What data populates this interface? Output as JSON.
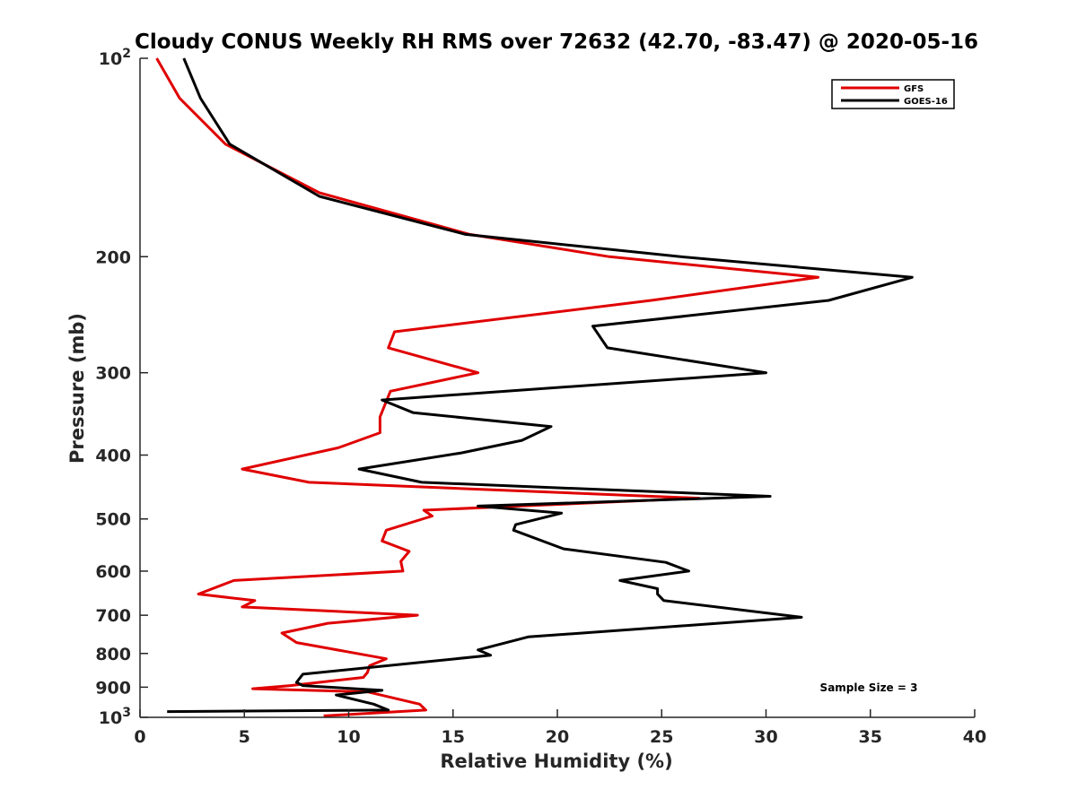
{
  "chart_data": {
    "type": "line",
    "title": "Cloudy CONUS Weekly RH RMS over 72632 (42.70, -83.47) @ 2020-05-16",
    "xlabel": "Relative Humidity (%)",
    "ylabel": "Pressure (mb)",
    "xlim": [
      0,
      40
    ],
    "ylim": [
      100,
      1000
    ],
    "y_scale": "log",
    "y_reversed": true,
    "grid": false,
    "legend_position": "top-right",
    "x_ticks": [
      {
        "value": 0,
        "label": "0"
      },
      {
        "value": 5,
        "label": "5"
      },
      {
        "value": 10,
        "label": "10"
      },
      {
        "value": 15,
        "label": "15"
      },
      {
        "value": 20,
        "label": "20"
      },
      {
        "value": 25,
        "label": "25"
      },
      {
        "value": 30,
        "label": "30"
      },
      {
        "value": 35,
        "label": "35"
      },
      {
        "value": 40,
        "label": "40"
      }
    ],
    "y_ticks": [
      {
        "value": 100,
        "label": "10",
        "sup": "2"
      },
      {
        "value": 200,
        "label": "200"
      },
      {
        "value": 300,
        "label": "300"
      },
      {
        "value": 400,
        "label": "400"
      },
      {
        "value": 500,
        "label": "500"
      },
      {
        "value": 600,
        "label": "600"
      },
      {
        "value": 700,
        "label": "700"
      },
      {
        "value": 800,
        "label": "800"
      },
      {
        "value": 900,
        "label": "900"
      },
      {
        "value": 1000,
        "label": "10",
        "sup": "3"
      }
    ],
    "annotation": "Sample Size = 3",
    "series": [
      {
        "name": "GFS",
        "color": "#e00000",
        "points": [
          [
            0.8,
            100
          ],
          [
            1.9,
            115
          ],
          [
            4.1,
            135
          ],
          [
            8.6,
            160
          ],
          [
            15.8,
            185
          ],
          [
            22.5,
            200
          ],
          [
            32.5,
            215
          ],
          [
            24.5,
            233
          ],
          [
            12.2,
            260
          ],
          [
            11.9,
            275
          ],
          [
            16.2,
            300
          ],
          [
            12.0,
            320
          ],
          [
            11.5,
            350
          ],
          [
            11.5,
            370
          ],
          [
            9.5,
            390
          ],
          [
            4.9,
            420
          ],
          [
            8.1,
            440
          ],
          [
            26.8,
            465
          ],
          [
            13.6,
            485
          ],
          [
            14.0,
            495
          ],
          [
            11.8,
            520
          ],
          [
            11.6,
            540
          ],
          [
            12.9,
            560
          ],
          [
            12.5,
            580
          ],
          [
            12.6,
            600
          ],
          [
            4.5,
            620
          ],
          [
            2.8,
            650
          ],
          [
            5.5,
            665
          ],
          [
            4.9,
            680
          ],
          [
            13.3,
            700
          ],
          [
            9.0,
            720
          ],
          [
            6.8,
            745
          ],
          [
            7.5,
            770
          ],
          [
            11.8,
            815
          ],
          [
            11.0,
            835
          ],
          [
            10.9,
            855
          ],
          [
            10.7,
            870
          ],
          [
            7.2,
            895
          ],
          [
            5.4,
            905
          ],
          [
            10.9,
            915
          ],
          [
            13.4,
            955
          ],
          [
            13.7,
            975
          ],
          [
            8.8,
            995
          ]
        ]
      },
      {
        "name": "GOES-16",
        "color": "#000000",
        "points": [
          [
            2.1,
            100
          ],
          [
            2.9,
            115
          ],
          [
            4.3,
            135
          ],
          [
            8.6,
            162
          ],
          [
            15.6,
            185
          ],
          [
            25.9,
            200
          ],
          [
            37.0,
            215
          ],
          [
            33.0,
            233
          ],
          [
            21.7,
            255
          ],
          [
            22.4,
            275
          ],
          [
            30.0,
            300
          ],
          [
            11.6,
            330
          ],
          [
            13.1,
            345
          ],
          [
            19.7,
            362
          ],
          [
            18.3,
            380
          ],
          [
            15.4,
            397
          ],
          [
            10.5,
            420
          ],
          [
            13.5,
            440
          ],
          [
            30.2,
            462
          ],
          [
            16.2,
            478
          ],
          [
            20.2,
            490
          ],
          [
            18.0,
            510
          ],
          [
            17.9,
            520
          ],
          [
            20.3,
            555
          ],
          [
            25.2,
            582
          ],
          [
            26.3,
            600
          ],
          [
            23.0,
            620
          ],
          [
            24.8,
            638
          ],
          [
            24.8,
            650
          ],
          [
            25.1,
            665
          ],
          [
            31.7,
            705
          ],
          [
            18.6,
            755
          ],
          [
            16.2,
            790
          ],
          [
            16.8,
            805
          ],
          [
            7.8,
            860
          ],
          [
            7.5,
            885
          ],
          [
            7.8,
            895
          ],
          [
            11.6,
            910
          ],
          [
            9.4,
            925
          ],
          [
            11.2,
            955
          ],
          [
            11.9,
            975
          ],
          [
            1.3,
            980
          ]
        ]
      }
    ]
  }
}
